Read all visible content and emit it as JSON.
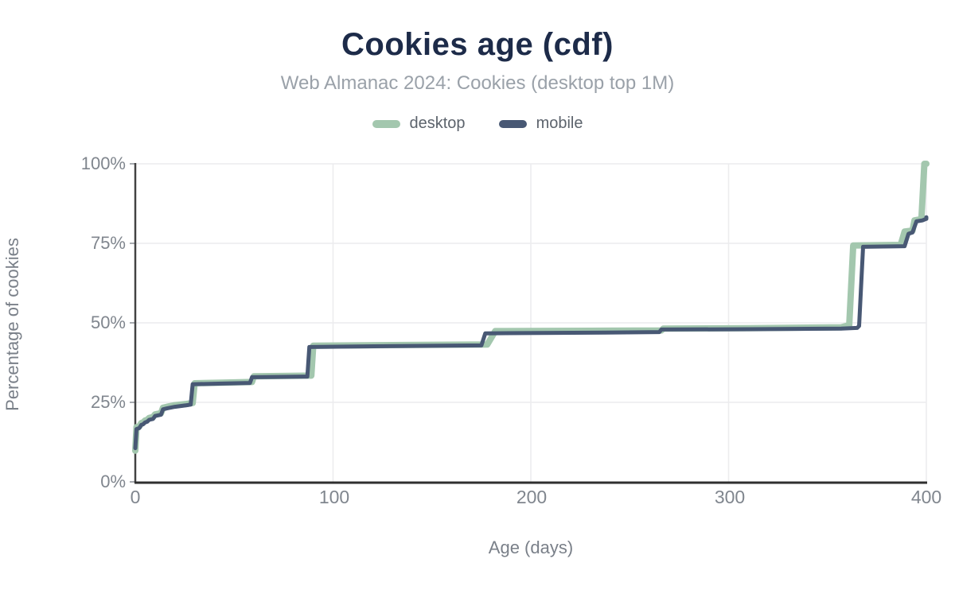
{
  "header": {
    "title": "Cookies age (cdf)",
    "subtitle": "Web Almanac 2024: Cookies (desktop top 1M)"
  },
  "legend": [
    {
      "label": "desktop",
      "color": "#a3c7ae"
    },
    {
      "label": "mobile",
      "color": "#485874"
    }
  ],
  "colors": {
    "title": "#1d2b49",
    "subtitle": "#9aa1a9",
    "tick_text": "#80868e",
    "axis_line": "#2f2f2f",
    "y_axis_line": "#424242",
    "gridline": "#ececee",
    "desktop_line": "#a3c7ae",
    "mobile_line": "#485874"
  },
  "chart_data": {
    "type": "line",
    "title": "Cookies age (cdf)",
    "subtitle": "Web Almanac 2024: Cookies (desktop top 1M)",
    "xlabel": "Age (days)",
    "ylabel": "Percentage of cookies",
    "xlim": [
      0,
      400
    ],
    "ylim": [
      0,
      100
    ],
    "x_ticks": [
      0,
      100,
      200,
      300,
      400
    ],
    "x_tick_labels": [
      "0",
      "100",
      "200",
      "300",
      "400"
    ],
    "y_ticks": [
      0,
      25,
      50,
      75,
      100
    ],
    "y_tick_labels": [
      "0%",
      "25%",
      "50%",
      "75%",
      "100%"
    ],
    "grid": true,
    "legend_position": "top",
    "series": [
      {
        "name": "desktop",
        "color": "#a3c7ae",
        "line_width": 8,
        "points": [
          [
            0,
            9.8
          ],
          [
            0.6,
            17.2
          ],
          [
            2,
            17.4
          ],
          [
            3,
            18.5
          ],
          [
            4,
            18.7
          ],
          [
            5,
            19.3
          ],
          [
            6,
            19.5
          ],
          [
            7,
            20.1
          ],
          [
            9,
            20.4
          ],
          [
            10,
            21.2
          ],
          [
            13,
            21.6
          ],
          [
            14,
            23.3
          ],
          [
            16,
            23.6
          ],
          [
            20,
            24.1
          ],
          [
            26,
            24.5
          ],
          [
            29,
            24.8
          ],
          [
            30,
            31.0
          ],
          [
            44,
            31.2
          ],
          [
            59,
            31.4
          ],
          [
            60,
            33.2
          ],
          [
            89,
            33.4
          ],
          [
            90,
            42.8
          ],
          [
            130,
            43.0
          ],
          [
            178,
            43.2
          ],
          [
            182,
            47.4
          ],
          [
            230,
            47.5
          ],
          [
            266,
            47.6
          ],
          [
            267,
            48.2
          ],
          [
            310,
            48.3
          ],
          [
            357,
            48.6
          ],
          [
            361,
            49.3
          ],
          [
            363,
            74.3
          ],
          [
            387,
            74.5
          ],
          [
            389,
            78.7
          ],
          [
            393,
            79.0
          ],
          [
            394,
            82.2
          ],
          [
            397.5,
            82.6
          ],
          [
            399,
            100
          ],
          [
            400,
            100
          ]
        ]
      },
      {
        "name": "mobile",
        "color": "#485874",
        "line_width": 5,
        "points": [
          [
            0,
            10.6
          ],
          [
            0.6,
            16.6
          ],
          [
            2,
            16.9
          ],
          [
            3,
            17.9
          ],
          [
            4,
            18.1
          ],
          [
            5,
            18.7
          ],
          [
            6,
            18.9
          ],
          [
            7,
            19.5
          ],
          [
            9,
            19.8
          ],
          [
            10,
            20.7
          ],
          [
            13,
            21.1
          ],
          [
            14,
            22.8
          ],
          [
            16,
            23.1
          ],
          [
            20,
            23.6
          ],
          [
            26,
            24.1
          ],
          [
            28,
            24.3
          ],
          [
            29,
            30.7
          ],
          [
            44,
            30.9
          ],
          [
            58,
            31.1
          ],
          [
            59,
            32.9
          ],
          [
            87,
            33.1
          ],
          [
            88,
            42.4
          ],
          [
            130,
            42.7
          ],
          [
            175,
            42.9
          ],
          [
            177,
            46.7
          ],
          [
            230,
            46.9
          ],
          [
            265,
            47.1
          ],
          [
            266,
            47.9
          ],
          [
            310,
            48.0
          ],
          [
            357,
            48.2
          ],
          [
            365,
            48.4
          ],
          [
            366,
            49.0
          ],
          [
            368,
            73.9
          ],
          [
            389,
            74.1
          ],
          [
            391,
            78.0
          ],
          [
            393,
            78.4
          ],
          [
            395,
            81.9
          ],
          [
            398,
            82.2
          ],
          [
            400,
            82.7
          ],
          [
            400,
            83.2
          ]
        ]
      }
    ]
  }
}
